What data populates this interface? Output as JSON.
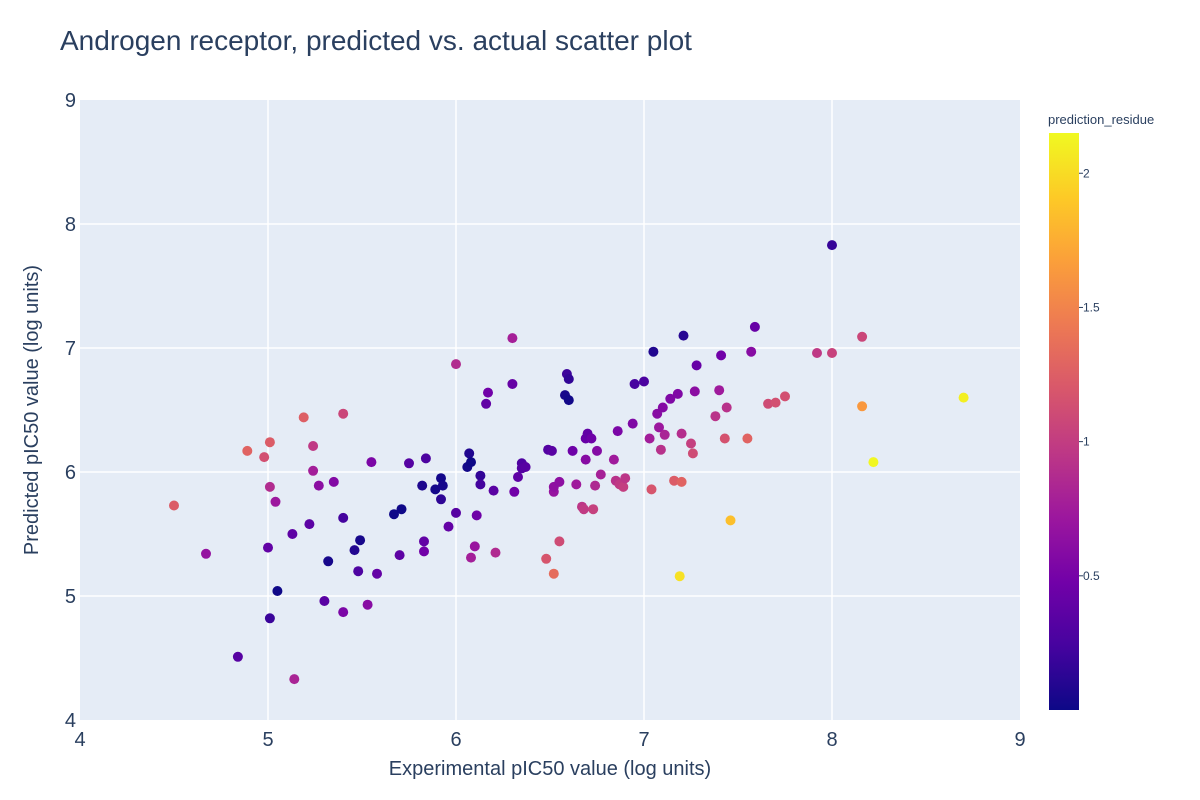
{
  "chart_data": {
    "type": "scatter",
    "title": "Androgen receptor, predicted vs. actual scatter plot",
    "xlabel": "Experimental pIC50 value (log units)",
    "ylabel": "Predicted pIC50 value (log units)",
    "xlim": [
      4,
      9
    ],
    "ylim": [
      4,
      9
    ],
    "xticks": [
      4,
      5,
      6,
      7,
      8,
      9
    ],
    "yticks": [
      4,
      5,
      6,
      7,
      8,
      9
    ],
    "grid": true,
    "colorbar": {
      "title": "prediction_residue",
      "range": [
        0,
        2.15
      ],
      "ticks": [
        0.5,
        1,
        1.5,
        2
      ],
      "tick_labels": [
        "0.5",
        "1",
        "1.5",
        "2"
      ],
      "colorscale": [
        "#0d0887",
        "#46039f",
        "#7201a8",
        "#9c179e",
        "#bd3786",
        "#d8576b",
        "#ed7953",
        "#fb9f3a",
        "#fdca26",
        "#f0f921"
      ]
    },
    "colors": {
      "plot_bg": "#e5ecf6",
      "grid": "#ffffff",
      "text": "#2a3f5f"
    },
    "points": [
      [
        4.5,
        5.73,
        1.23
      ],
      [
        4.67,
        5.34,
        0.67
      ],
      [
        4.84,
        4.51,
        0.33
      ],
      [
        4.89,
        6.17,
        1.28
      ],
      [
        4.98,
        6.12,
        1.14
      ],
      [
        5.0,
        5.39,
        0.39
      ],
      [
        5.01,
        5.88,
        0.87
      ],
      [
        5.01,
        6.24,
        1.23
      ],
      [
        5.01,
        4.82,
        0.19
      ],
      [
        5.04,
        5.76,
        0.72
      ],
      [
        5.05,
        5.04,
        0.01
      ],
      [
        5.13,
        5.5,
        0.37
      ],
      [
        5.14,
        4.33,
        0.81
      ],
      [
        5.19,
        6.44,
        1.25
      ],
      [
        5.22,
        5.58,
        0.36
      ],
      [
        5.24,
        6.01,
        0.77
      ],
      [
        5.24,
        6.21,
        0.97
      ],
      [
        5.27,
        5.89,
        0.62
      ],
      [
        5.3,
        4.96,
        0.34
      ],
      [
        5.32,
        5.28,
        0.04
      ],
      [
        5.35,
        5.92,
        0.57
      ],
      [
        5.4,
        6.47,
        1.07
      ],
      [
        5.4,
        5.63,
        0.23
      ],
      [
        5.4,
        4.87,
        0.53
      ],
      [
        5.46,
        5.37,
        0.09
      ],
      [
        5.48,
        5.2,
        0.28
      ],
      [
        5.49,
        5.45,
        0.04
      ],
      [
        5.53,
        4.93,
        0.6
      ],
      [
        5.55,
        6.08,
        0.53
      ],
      [
        5.58,
        5.18,
        0.4
      ],
      [
        5.67,
        5.66,
        0.01
      ],
      [
        5.7,
        5.33,
        0.37
      ],
      [
        5.71,
        5.7,
        0.01
      ],
      [
        5.75,
        6.07,
        0.32
      ],
      [
        5.82,
        5.89,
        0.07
      ],
      [
        5.83,
        5.44,
        0.39
      ],
      [
        5.83,
        5.36,
        0.47
      ],
      [
        5.84,
        6.11,
        0.27
      ],
      [
        5.89,
        5.86,
        0.03
      ],
      [
        5.92,
        5.95,
        0.03
      ],
      [
        5.92,
        5.78,
        0.14
      ],
      [
        5.93,
        5.89,
        0.04
      ],
      [
        5.96,
        5.56,
        0.4
      ],
      [
        6.0,
        6.87,
        0.87
      ],
      [
        6.0,
        5.67,
        0.33
      ],
      [
        6.06,
        6.04,
        0.02
      ],
      [
        6.07,
        6.15,
        0.08
      ],
      [
        6.08,
        5.31,
        0.77
      ],
      [
        6.08,
        6.08,
        0.0
      ],
      [
        6.1,
        5.4,
        0.7
      ],
      [
        6.11,
        5.65,
        0.46
      ],
      [
        6.13,
        5.97,
        0.16
      ],
      [
        6.13,
        5.9,
        0.23
      ],
      [
        6.16,
        6.55,
        0.39
      ],
      [
        6.17,
        6.64,
        0.47
      ],
      [
        6.2,
        5.85,
        0.35
      ],
      [
        6.21,
        5.35,
        0.86
      ],
      [
        6.3,
        6.71,
        0.41
      ],
      [
        6.3,
        7.08,
        0.78
      ],
      [
        6.31,
        5.84,
        0.47
      ],
      [
        6.33,
        5.96,
        0.37
      ],
      [
        6.35,
        6.07,
        0.28
      ],
      [
        6.35,
        6.03,
        0.32
      ],
      [
        6.37,
        6.04,
        0.33
      ],
      [
        6.48,
        5.3,
        1.18
      ],
      [
        6.49,
        6.18,
        0.31
      ],
      [
        6.51,
        6.17,
        0.34
      ],
      [
        6.52,
        5.84,
        0.68
      ],
      [
        6.52,
        5.18,
        1.34
      ],
      [
        6.52,
        5.88,
        0.64
      ],
      [
        6.55,
        5.92,
        0.63
      ],
      [
        6.55,
        5.44,
        1.11
      ],
      [
        6.58,
        6.62,
        0.04
      ],
      [
        6.59,
        6.79,
        0.2
      ],
      [
        6.6,
        6.75,
        0.15
      ],
      [
        6.6,
        6.58,
        0.02
      ],
      [
        6.62,
        6.17,
        0.45
      ],
      [
        6.64,
        5.9,
        0.74
      ],
      [
        6.67,
        5.72,
        0.95
      ],
      [
        6.68,
        5.7,
        0.98
      ],
      [
        6.69,
        6.1,
        0.59
      ],
      [
        6.69,
        6.27,
        0.42
      ],
      [
        6.7,
        6.31,
        0.39
      ],
      [
        6.72,
        6.27,
        0.45
      ],
      [
        6.73,
        5.7,
        1.03
      ],
      [
        6.74,
        5.89,
        0.85
      ],
      [
        6.75,
        6.17,
        0.58
      ],
      [
        6.77,
        5.98,
        0.79
      ],
      [
        6.84,
        6.1,
        0.74
      ],
      [
        6.85,
        5.93,
        0.92
      ],
      [
        6.86,
        6.33,
        0.53
      ],
      [
        6.87,
        5.9,
        0.97
      ],
      [
        6.89,
        5.88,
        1.01
      ],
      [
        6.9,
        5.95,
        0.95
      ],
      [
        6.94,
        6.39,
        0.55
      ],
      [
        6.95,
        6.71,
        0.24
      ],
      [
        7.0,
        6.73,
        0.27
      ],
      [
        7.03,
        6.27,
        0.76
      ],
      [
        7.04,
        5.86,
        1.18
      ],
      [
        7.05,
        6.97,
        0.08
      ],
      [
        7.07,
        6.47,
        0.6
      ],
      [
        7.08,
        6.36,
        0.72
      ],
      [
        7.09,
        6.18,
        0.91
      ],
      [
        7.1,
        6.52,
        0.58
      ],
      [
        7.11,
        6.3,
        0.81
      ],
      [
        7.14,
        6.59,
        0.55
      ],
      [
        7.16,
        5.93,
        1.23
      ],
      [
        7.18,
        6.63,
        0.55
      ],
      [
        7.19,
        5.16,
        2.03
      ],
      [
        7.2,
        5.92,
        1.28
      ],
      [
        7.2,
        6.31,
        0.89
      ],
      [
        7.21,
        7.1,
        0.11
      ],
      [
        7.25,
        6.23,
        1.02
      ],
      [
        7.26,
        6.15,
        1.11
      ],
      [
        7.27,
        6.65,
        0.62
      ],
      [
        7.28,
        6.86,
        0.42
      ],
      [
        7.38,
        6.45,
        0.93
      ],
      [
        7.4,
        6.66,
        0.74
      ],
      [
        7.41,
        6.94,
        0.47
      ],
      [
        7.43,
        6.27,
        1.16
      ],
      [
        7.44,
        6.52,
        0.92
      ],
      [
        7.46,
        5.61,
        1.85
      ],
      [
        7.55,
        6.27,
        1.28
      ],
      [
        7.57,
        6.97,
        0.6
      ],
      [
        7.59,
        7.17,
        0.42
      ],
      [
        7.66,
        6.55,
        1.11
      ],
      [
        7.7,
        6.56,
        1.14
      ],
      [
        7.75,
        6.61,
        1.14
      ],
      [
        7.92,
        6.96,
        0.96
      ],
      [
        8.0,
        6.96,
        1.04
      ],
      [
        8.0,
        7.83,
        0.17
      ],
      [
        8.16,
        7.09,
        1.07
      ],
      [
        8.16,
        6.53,
        1.63
      ],
      [
        8.22,
        6.08,
        2.14
      ],
      [
        8.7,
        6.6,
        2.1
      ]
    ]
  }
}
